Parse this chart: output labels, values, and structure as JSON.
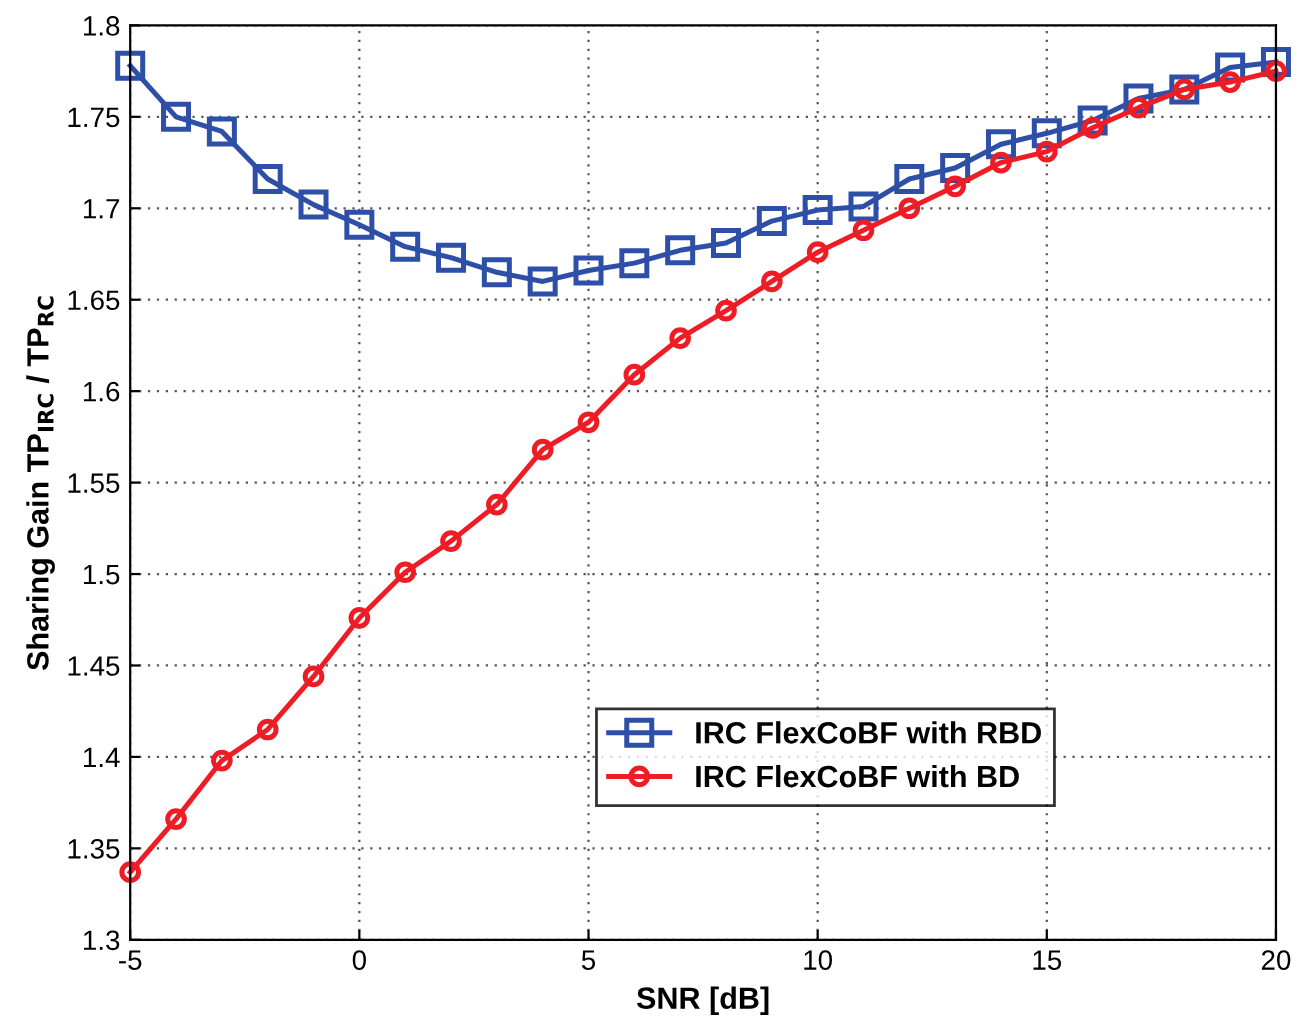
{
  "chart_data": {
    "type": "line",
    "xlabel": "SNR [dB]",
    "ylabel": "Sharing Gain TP$_{IRC}$ / TP$_{RC}$",
    "x": [
      -5,
      -4,
      -3,
      -2,
      -1,
      0,
      1,
      2,
      3,
      4,
      5,
      6,
      7,
      8,
      9,
      10,
      11,
      12,
      13,
      14,
      15,
      16,
      17,
      18,
      19,
      20
    ],
    "series": [
      {
        "name": "IRC FlexCoBF with RBD",
        "color": "#2e4fa8",
        "marker": "square",
        "values": [
          1.778,
          1.75,
          1.742,
          1.716,
          1.702,
          1.691,
          1.679,
          1.673,
          1.665,
          1.66,
          1.666,
          1.67,
          1.677,
          1.681,
          1.693,
          1.699,
          1.701,
          1.716,
          1.722,
          1.735,
          1.741,
          1.748,
          1.76,
          1.765,
          1.777,
          1.78
        ]
      },
      {
        "name": "IRC FlexCoBF with BD",
        "color": "#ee1c25",
        "marker": "circle",
        "values": [
          1.337,
          1.366,
          1.398,
          1.415,
          1.444,
          1.476,
          1.501,
          1.518,
          1.538,
          1.568,
          1.583,
          1.609,
          1.629,
          1.644,
          1.66,
          1.676,
          1.688,
          1.7,
          1.712,
          1.725,
          1.731,
          1.744,
          1.755,
          1.765,
          1.769,
          1.775
        ]
      }
    ],
    "xlim": [
      -5,
      20
    ],
    "xticks": [
      -5,
      0,
      5,
      10,
      15,
      20
    ],
    "ylim": [
      1.3,
      1.8
    ],
    "yticks": [
      1.3,
      1.35,
      1.4,
      1.45,
      1.5,
      1.55,
      1.6,
      1.65,
      1.7,
      1.75,
      1.8
    ],
    "grid": true,
    "legend": "lower right",
    "line_style": "solid"
  }
}
